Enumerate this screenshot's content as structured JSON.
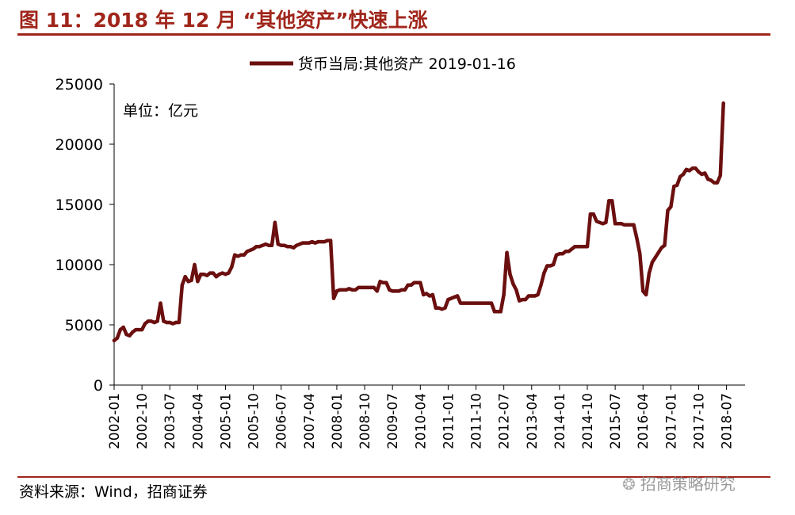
{
  "figure_title": "图 11：2018 年 12 月 “其他资产”快速上涨",
  "source_note": "资料来源：Wind，招商证券",
  "watermark": "招商策略研究",
  "colors": {
    "accent": "#a0261b",
    "series": "#6b0f0f"
  },
  "chart_data": {
    "type": "line",
    "unit_note": "单位：亿元",
    "legend": [
      "货币当局:其他资产 2019-01-16"
    ],
    "legend_position": "top-center",
    "ylim": [
      0,
      25000
    ],
    "yticks": [
      0,
      5000,
      10000,
      15000,
      20000,
      25000
    ],
    "xtick_labels": [
      "2002-01",
      "2002-10",
      "2003-07",
      "2004-04",
      "2005-01",
      "2005-10",
      "2006-07",
      "2007-04",
      "2008-01",
      "2008-10",
      "2009-07",
      "2010-04",
      "2011-01",
      "2011-10",
      "2012-07",
      "2013-04",
      "2014-01",
      "2014-10",
      "2015-07",
      "2016-04",
      "2017-01",
      "2017-10",
      "2018-07"
    ],
    "grid": false,
    "series": [
      {
        "name": "货币当局:其他资产 2019-01-16",
        "points": [
          [
            "2002-01",
            3700
          ],
          [
            "2002-02",
            3900
          ],
          [
            "2002-03",
            4600
          ],
          [
            "2002-04",
            4800
          ],
          [
            "2002-05",
            4200
          ],
          [
            "2002-06",
            4100
          ],
          [
            "2002-07",
            4400
          ],
          [
            "2002-08",
            4600
          ],
          [
            "2002-09",
            4600
          ],
          [
            "2002-10",
            4600
          ],
          [
            "2002-11",
            5100
          ],
          [
            "2002-12",
            5300
          ],
          [
            "2003-01",
            5300
          ],
          [
            "2003-02",
            5200
          ],
          [
            "2003-03",
            5300
          ],
          [
            "2003-04",
            6800
          ],
          [
            "2003-05",
            5300
          ],
          [
            "2003-06",
            5200
          ],
          [
            "2003-07",
            5200
          ],
          [
            "2003-08",
            5100
          ],
          [
            "2003-09",
            5200
          ],
          [
            "2003-10",
            5200
          ],
          [
            "2003-11",
            8300
          ],
          [
            "2003-12",
            9000
          ],
          [
            "2004-01",
            8600
          ],
          [
            "2004-02",
            8700
          ],
          [
            "2004-03",
            10000
          ],
          [
            "2004-04",
            8600
          ],
          [
            "2004-05",
            9200
          ],
          [
            "2004-06",
            9200
          ],
          [
            "2004-07",
            9100
          ],
          [
            "2004-08",
            9300
          ],
          [
            "2004-09",
            9300
          ],
          [
            "2004-10",
            9000
          ],
          [
            "2004-11",
            9200
          ],
          [
            "2004-12",
            9300
          ],
          [
            "2005-01",
            9200
          ],
          [
            "2005-02",
            9300
          ],
          [
            "2005-03",
            9800
          ],
          [
            "2005-04",
            10800
          ],
          [
            "2005-05",
            10700
          ],
          [
            "2005-06",
            10800
          ],
          [
            "2005-07",
            10800
          ],
          [
            "2005-08",
            11100
          ],
          [
            "2005-09",
            11200
          ],
          [
            "2005-10",
            11300
          ],
          [
            "2005-11",
            11500
          ],
          [
            "2005-12",
            11500
          ],
          [
            "2006-01",
            11600
          ],
          [
            "2006-02",
            11700
          ],
          [
            "2006-03",
            11600
          ],
          [
            "2006-04",
            11600
          ],
          [
            "2006-05",
            13500
          ],
          [
            "2006-06",
            11700
          ],
          [
            "2006-07",
            11600
          ],
          [
            "2006-08",
            11600
          ],
          [
            "2006-09",
            11500
          ],
          [
            "2006-10",
            11500
          ],
          [
            "2006-11",
            11400
          ],
          [
            "2006-12",
            11600
          ],
          [
            "2007-01",
            11700
          ],
          [
            "2007-02",
            11800
          ],
          [
            "2007-03",
            11800
          ],
          [
            "2007-04",
            11800
          ],
          [
            "2007-05",
            11900
          ],
          [
            "2007-06",
            11800
          ],
          [
            "2007-07",
            11900
          ],
          [
            "2007-08",
            11900
          ],
          [
            "2007-09",
            11900
          ],
          [
            "2007-10",
            12000
          ],
          [
            "2007-11",
            12000
          ],
          [
            "2007-12",
            7200
          ],
          [
            "2008-01",
            7800
          ],
          [
            "2008-02",
            7900
          ],
          [
            "2008-03",
            7900
          ],
          [
            "2008-04",
            7900
          ],
          [
            "2008-05",
            8000
          ],
          [
            "2008-06",
            7900
          ],
          [
            "2008-07",
            7900
          ],
          [
            "2008-08",
            8100
          ],
          [
            "2008-09",
            8100
          ],
          [
            "2008-10",
            8100
          ],
          [
            "2008-11",
            8100
          ],
          [
            "2008-12",
            8100
          ],
          [
            "2009-01",
            8100
          ],
          [
            "2009-02",
            7800
          ],
          [
            "2009-03",
            8600
          ],
          [
            "2009-04",
            8500
          ],
          [
            "2009-05",
            8500
          ],
          [
            "2009-06",
            7900
          ],
          [
            "2009-07",
            7800
          ],
          [
            "2009-08",
            7800
          ],
          [
            "2009-09",
            7800
          ],
          [
            "2009-10",
            7900
          ],
          [
            "2009-11",
            7900
          ],
          [
            "2009-12",
            8300
          ],
          [
            "2010-01",
            8300
          ],
          [
            "2010-02",
            8500
          ],
          [
            "2010-03",
            8500
          ],
          [
            "2010-04",
            8500
          ],
          [
            "2010-05",
            7500
          ],
          [
            "2010-06",
            7600
          ],
          [
            "2010-07",
            7400
          ],
          [
            "2010-08",
            7500
          ],
          [
            "2010-09",
            6400
          ],
          [
            "2010-10",
            6400
          ],
          [
            "2010-11",
            6300
          ],
          [
            "2010-12",
            6400
          ],
          [
            "2011-01",
            7100
          ],
          [
            "2011-02",
            7200
          ],
          [
            "2011-03",
            7300
          ],
          [
            "2011-04",
            7400
          ],
          [
            "2011-05",
            6800
          ],
          [
            "2011-06",
            6800
          ],
          [
            "2011-07",
            6800
          ],
          [
            "2011-08",
            6800
          ],
          [
            "2011-09",
            6800
          ],
          [
            "2011-10",
            6800
          ],
          [
            "2011-11",
            6800
          ],
          [
            "2011-12",
            6800
          ],
          [
            "2012-01",
            6800
          ],
          [
            "2012-02",
            6800
          ],
          [
            "2012-03",
            6800
          ],
          [
            "2012-04",
            6100
          ],
          [
            "2012-05",
            6100
          ],
          [
            "2012-06",
            6100
          ],
          [
            "2012-07",
            7500
          ],
          [
            "2012-08",
            11000
          ],
          [
            "2012-09",
            9200
          ],
          [
            "2012-10",
            8400
          ],
          [
            "2012-11",
            7900
          ],
          [
            "2012-12",
            7000
          ],
          [
            "2013-01",
            7100
          ],
          [
            "2013-02",
            7100
          ],
          [
            "2013-03",
            7400
          ],
          [
            "2013-04",
            7400
          ],
          [
            "2013-05",
            7400
          ],
          [
            "2013-06",
            7500
          ],
          [
            "2013-07",
            8300
          ],
          [
            "2013-08",
            9300
          ],
          [
            "2013-09",
            9900
          ],
          [
            "2013-10",
            9900
          ],
          [
            "2013-11",
            10000
          ],
          [
            "2013-12",
            10800
          ],
          [
            "2014-01",
            10900
          ],
          [
            "2014-02",
            10900
          ],
          [
            "2014-03",
            11100
          ],
          [
            "2014-04",
            11100
          ],
          [
            "2014-05",
            11300
          ],
          [
            "2014-06",
            11500
          ],
          [
            "2014-07",
            11500
          ],
          [
            "2014-08",
            11500
          ],
          [
            "2014-09",
            11500
          ],
          [
            "2014-10",
            11500
          ],
          [
            "2014-11",
            14200
          ],
          [
            "2014-12",
            14200
          ],
          [
            "2015-01",
            13600
          ],
          [
            "2015-02",
            13500
          ],
          [
            "2015-03",
            13400
          ],
          [
            "2015-04",
            13500
          ],
          [
            "2015-05",
            15300
          ],
          [
            "2015-06",
            15300
          ],
          [
            "2015-07",
            13400
          ],
          [
            "2015-08",
            13400
          ],
          [
            "2015-09",
            13400
          ],
          [
            "2015-10",
            13300
          ],
          [
            "2015-11",
            13300
          ],
          [
            "2015-12",
            13300
          ],
          [
            "2016-01",
            13300
          ],
          [
            "2016-02",
            12200
          ],
          [
            "2016-03",
            10900
          ],
          [
            "2016-04",
            7800
          ],
          [
            "2016-05",
            7500
          ],
          [
            "2016-06",
            9300
          ],
          [
            "2016-07",
            10200
          ],
          [
            "2016-08",
            10600
          ],
          [
            "2016-09",
            11000
          ],
          [
            "2016-10",
            11400
          ],
          [
            "2016-11",
            11600
          ],
          [
            "2016-12",
            14500
          ],
          [
            "2017-01",
            14800
          ],
          [
            "2017-02",
            16500
          ],
          [
            "2017-03",
            16600
          ],
          [
            "2017-04",
            17300
          ],
          [
            "2017-05",
            17500
          ],
          [
            "2017-06",
            17900
          ],
          [
            "2017-07",
            17800
          ],
          [
            "2017-08",
            18000
          ],
          [
            "2017-09",
            18000
          ],
          [
            "2017-10",
            17700
          ],
          [
            "2017-11",
            17500
          ],
          [
            "2017-12",
            17600
          ],
          [
            "2018-01",
            17100
          ],
          [
            "2018-02",
            17000
          ],
          [
            "2018-03",
            16800
          ],
          [
            "2018-04",
            16800
          ],
          [
            "2018-05",
            17400
          ],
          [
            "2018-06",
            23400
          ]
        ]
      }
    ]
  }
}
